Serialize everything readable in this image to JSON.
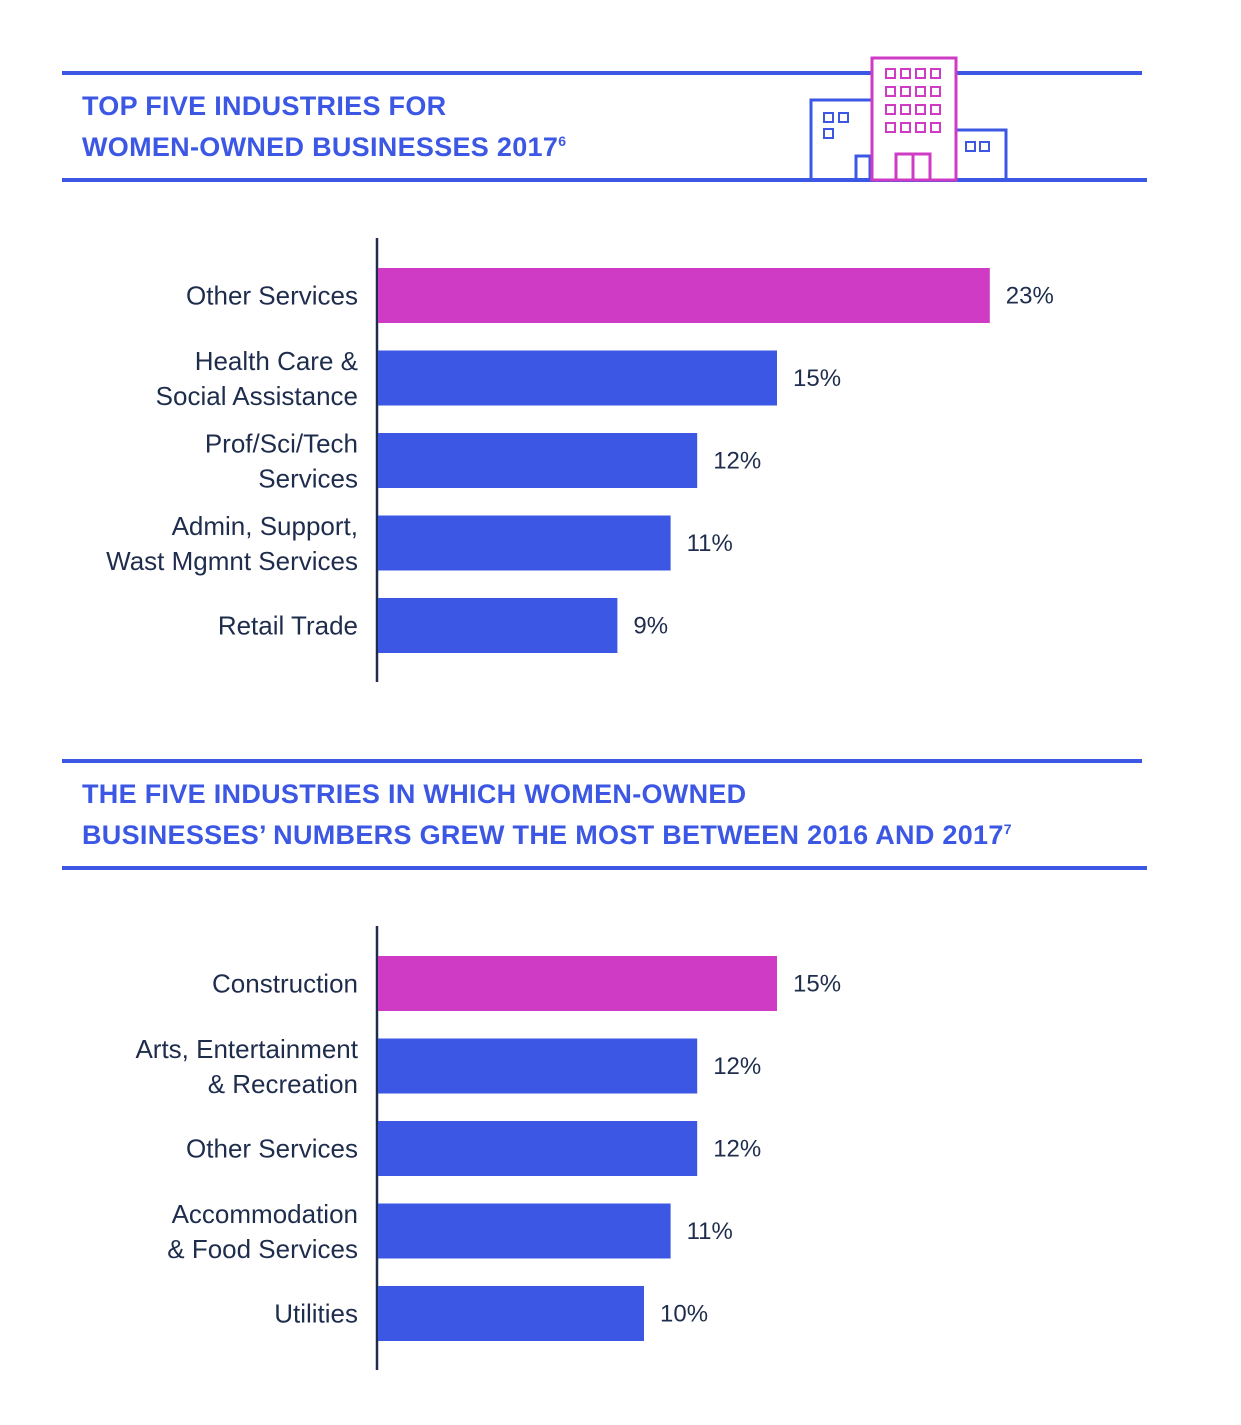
{
  "chart_data": [
    {
      "type": "bar",
      "orientation": "horizontal",
      "title": "TOP FIVE INDUSTRIES FOR WOMEN-OWNED BUSINESSES 2017",
      "title_lines": [
        "TOP FIVE INDUSTRIES FOR",
        "WOMEN-OWNED BUSINESSES 2017"
      ],
      "footnote": "6",
      "categories": [
        "Other Services",
        "Health Care & Social Assistance",
        "Prof/Sci/Tech Services",
        "Admin, Support, Wast Mgmnt Services",
        "Retail Trade"
      ],
      "category_lines": [
        [
          "Other Services"
        ],
        [
          "Health Care &",
          "Social Assistance"
        ],
        [
          "Prof/Sci/Tech",
          "Services"
        ],
        [
          "Admin, Support,",
          "Wast Mgmnt Services"
        ],
        [
          "Retail Trade"
        ]
      ],
      "values": [
        23,
        15,
        12,
        11,
        9
      ],
      "value_labels": [
        "23%",
        "15%",
        "12%",
        "11%",
        "9%"
      ],
      "unit": "%",
      "highlight_index": 0,
      "grid": false
    },
    {
      "type": "bar",
      "orientation": "horizontal",
      "title": "THE FIVE INDUSTRIES IN WHICH WOMEN-OWNED BUSINESSES' NUMBERS GREW THE MOST BETWEEN 2016 AND 2017",
      "title_lines": [
        "THE FIVE INDUSTRIES IN WHICH WOMEN-OWNED",
        "BUSINESSES’ NUMBERS GREW THE MOST BETWEEN 2016 AND 2017"
      ],
      "footnote": "7",
      "categories": [
        "Construction",
        "Arts, Entertainment & Recreation",
        "Other Services",
        "Accommodation & Food Services",
        "Utilities"
      ],
      "category_lines": [
        [
          "Construction"
        ],
        [
          "Arts, Entertainment",
          "& Recreation"
        ],
        [
          "Other Services"
        ],
        [
          "Accommodation",
          "& Food Services"
        ],
        [
          "Utilities"
        ]
      ],
      "values": [
        15,
        12,
        12,
        11,
        10
      ],
      "value_labels": [
        "15%",
        "12%",
        "12%",
        "11%",
        "10%"
      ],
      "unit": "%",
      "highlight_index": 0,
      "grid": false
    }
  ],
  "colors": {
    "accent": "#3b57e4",
    "highlight": "#cf3bc4",
    "text": "#1f2d4d"
  },
  "icons": {
    "header_illustration": "office-buildings-icon"
  }
}
